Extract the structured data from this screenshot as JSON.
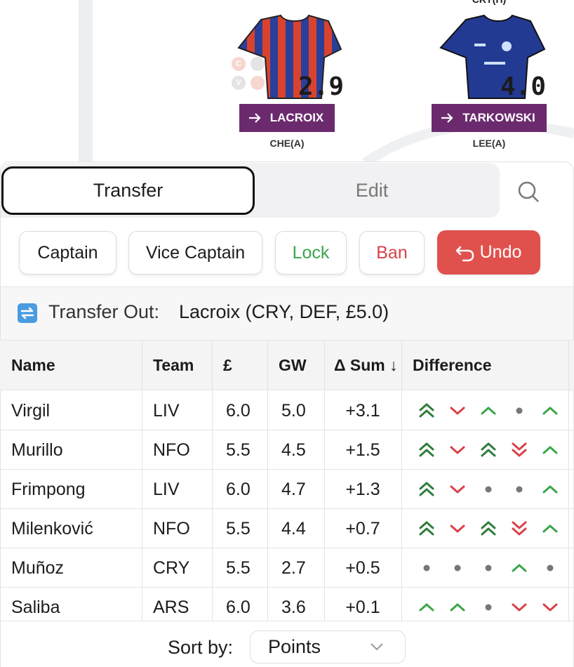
{
  "pitch": {
    "badges": [
      "C",
      "V"
    ],
    "players": [
      {
        "price": "2.9",
        "name": "LACROIX",
        "fixture": "CHE(A)"
      },
      {
        "above": "CRY(H)",
        "price": "4.0",
        "name": "TARKOWSKI",
        "fixture": "LEE(A)"
      }
    ]
  },
  "tabs": [
    "Transfer",
    "Edit"
  ],
  "actions": [
    "Captain",
    "Vice Captain",
    "Lock",
    "Ban",
    "Undo"
  ],
  "transfer_out": {
    "label": "Transfer Out:",
    "player": "Lacroix (CRY, DEF, £5.0)"
  },
  "table": {
    "headers": [
      "Name",
      "Team",
      "£",
      "GW",
      "Δ Sum ↓",
      "Difference"
    ],
    "rows": [
      [
        "Virgil",
        "LIV",
        "6.0",
        "5.0",
        "+3.1"
      ],
      [
        "Murillo",
        "NFO",
        "5.5",
        "4.5",
        "+1.5"
      ],
      [
        "Frimpong",
        "LIV",
        "6.0",
        "4.7",
        "+1.3"
      ],
      [
        "Milenković",
        "NFO",
        "5.5",
        "4.4",
        "+0.7"
      ],
      [
        "Muñoz",
        "CRY",
        "5.5",
        "2.7",
        "+0.5"
      ],
      [
        "Saliba",
        "ARS",
        "6.0",
        "3.6",
        "+0.1"
      ]
    ]
  },
  "sort": {
    "label": "Sort by:",
    "value": "Points"
  }
}
